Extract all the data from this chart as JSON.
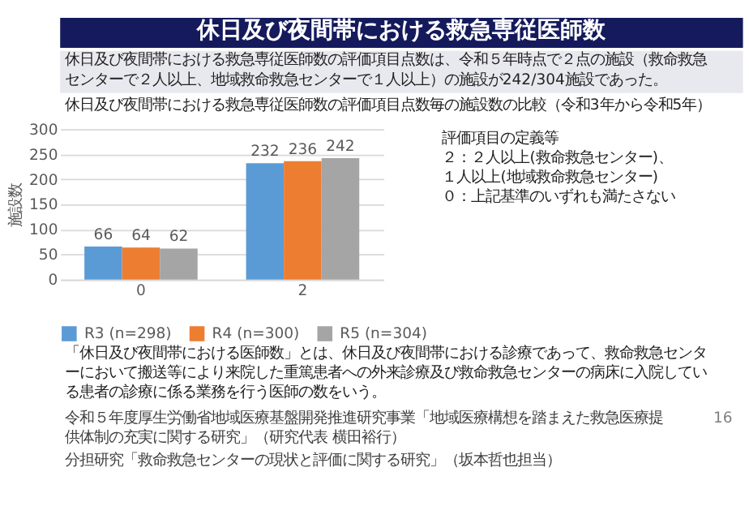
{
  "chart_data": {
    "type": "bar",
    "title": "休日及び夜間帯における救急専従医師数",
    "subtitle": "休日及び夜間帯における救急専従医師数の評価項目点数毎の施設数の比較（令和3年から令和5年）",
    "ylabel": "施設数",
    "categories": [
      "0",
      "2"
    ],
    "series": [
      {
        "name": "R3 (n=298)",
        "color": "#5b9bd5",
        "values": [
          66,
          232
        ]
      },
      {
        "name": "R4 (n=300)",
        "color": "#ed7d31",
        "values": [
          64,
          236
        ]
      },
      {
        "name": "R5 (n=304)",
        "color": "#a5a5a5",
        "values": [
          62,
          242
        ]
      }
    ],
    "ylim": [
      0,
      300
    ],
    "yticks": [
      0,
      50,
      100,
      150,
      200,
      250,
      300
    ],
    "grid": "y",
    "legend": "bottom",
    "data_labels": true,
    "annotations": [
      "休日及び夜間帯における救急専従医師数の評価項目点数は、令和５年時点で２点の施設（救命救急センターで２人以上、地域救命救急センターで１人以上）の施設が242/304施設であった。",
      "評価項目の定義等",
      "２：２人以上(救命救急センター)、",
      "　　１人以上(地域救命救急センター)",
      "０：上記基準のいずれも満たさない",
      "「休日及び夜間帯における医師数」とは、休日及び夜間帯における診療であって、救命救急センターにおいて搬送等により来院した重篤患者への外来診療及び救命救急センターの病床に入院している患者の診療に係る業務を行う医師の数をいう。",
      "令和５年度厚生労働省地域医療基盤開発推進研究事業「地域医療構想を踏まえた救急医療提供体制の充実に関する研究」（研究代表 横田裕行）",
      "分担研究「救命救急センターの現状と評価に関する研究」（坂本哲也担当）",
      "16"
    ]
  }
}
